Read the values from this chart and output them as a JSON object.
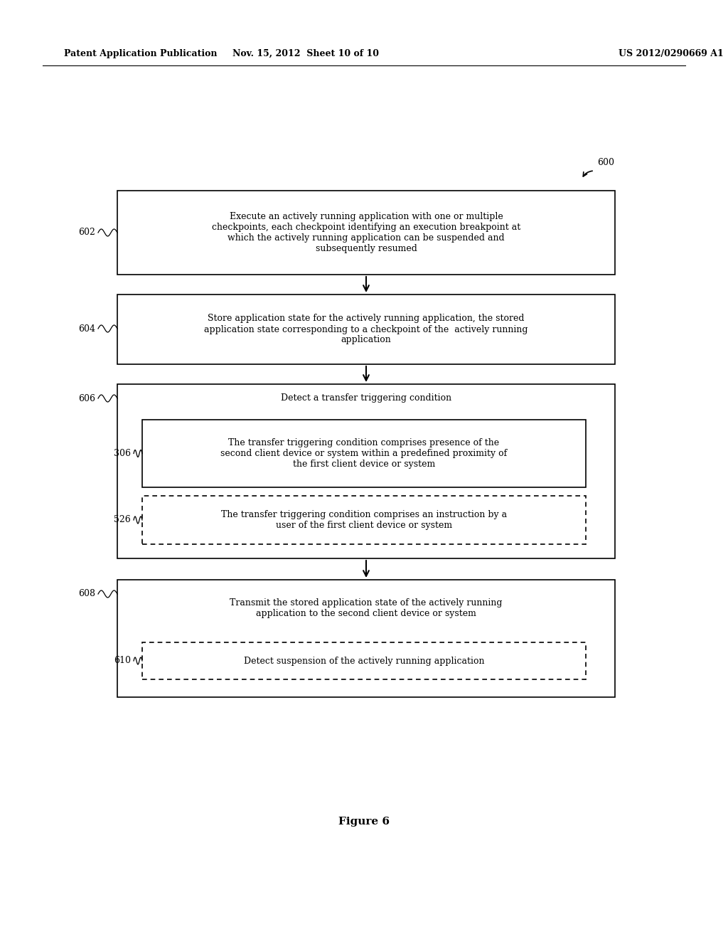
{
  "background_color": "#ffffff",
  "header_left": "Patent Application Publication",
  "header_middle": "Nov. 15, 2012  Sheet 10 of 10",
  "header_right": "US 2012/0290669 A1",
  "figure_label": "Figure 6",
  "diagram_label": "600"
}
